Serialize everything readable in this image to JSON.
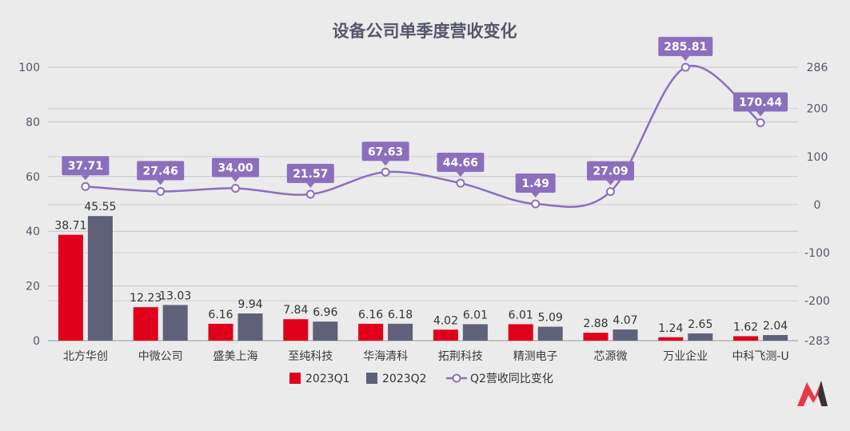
{
  "chart_data": {
    "type": "bar",
    "title": "设备公司单季度营收变化",
    "categories": [
      "北方华创",
      "中微公司",
      "盛美上海",
      "至纯科技",
      "华海清科",
      "拓荆科技",
      "精测电子",
      "芯源微",
      "万业企业",
      "中科飞测-U"
    ],
    "series": [
      {
        "name": "2023Q1",
        "type": "bar",
        "axis": "left",
        "color": "#e0001b",
        "values": [
          38.71,
          12.23,
          6.16,
          7.84,
          6.16,
          4.02,
          6.01,
          2.88,
          1.24,
          1.62
        ],
        "labels": [
          "38.71",
          "12.23",
          "6.16",
          "7.84",
          "6.16",
          "4.02",
          "6.01",
          "2.88",
          "1.24",
          "1.62"
        ]
      },
      {
        "name": "2023Q2",
        "type": "bar",
        "axis": "left",
        "color": "#5f6178",
        "values": [
          45.55,
          13.03,
          9.94,
          6.96,
          6.18,
          6.01,
          5.09,
          4.07,
          2.65,
          2.04
        ],
        "labels": [
          "45.55",
          "13.03",
          "9.94",
          "6.96",
          "6.18",
          "6.01",
          "5.09",
          "4.07",
          "2.65",
          "2.04"
        ]
      },
      {
        "name": "Q2营收同比变化",
        "type": "line",
        "axis": "right",
        "color": "#8b6fbd",
        "values": [
          37.71,
          27.46,
          34.0,
          21.57,
          67.63,
          44.66,
          1.49,
          27.09,
          285.81,
          170.44
        ],
        "labels": [
          "37.71",
          "27.46",
          "34.00",
          "21.57",
          "67.63",
          "44.66",
          "1.49",
          "27.09",
          "285.81",
          "170.44"
        ]
      }
    ],
    "y_left": {
      "range": [
        0,
        100
      ],
      "ticks": [
        "0",
        "20",
        "40",
        "60",
        "80",
        "100"
      ],
      "tick_values": [
        0,
        20,
        40,
        60,
        80,
        100
      ]
    },
    "y_right": {
      "range": [
        -283,
        286
      ],
      "ticks": [
        "-283",
        "-200",
        "-100",
        "0",
        "100",
        "200",
        "286"
      ],
      "tick_values": [
        -283,
        -200,
        -100,
        0,
        100,
        200,
        286
      ]
    },
    "grid": true,
    "legend_position": "bottom"
  }
}
